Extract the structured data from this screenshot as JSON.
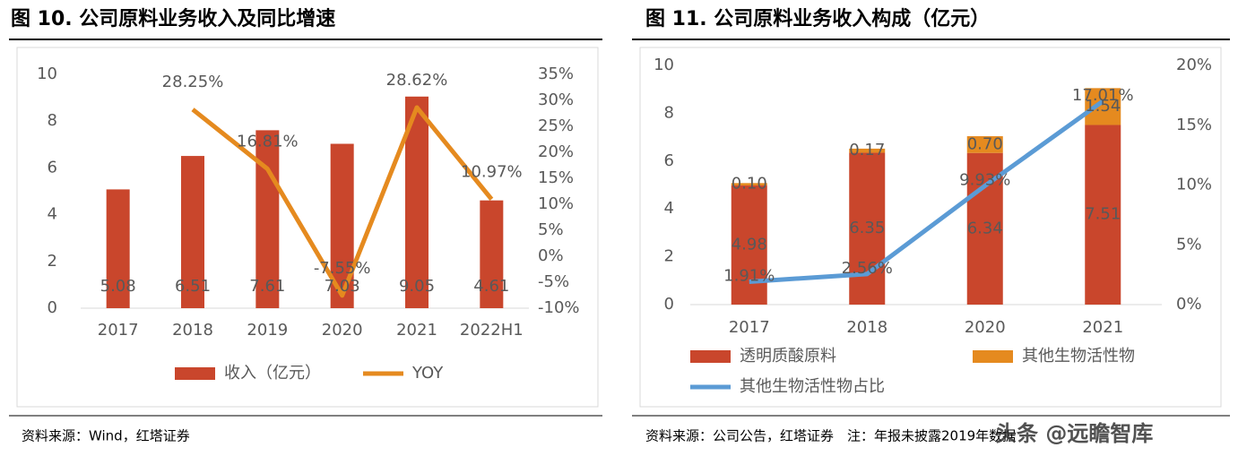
{
  "chart_data": [
    {
      "type": "combo",
      "title": "图 10. 公司原料业务收入及同比增速",
      "source": "资料来源：Wind，红塔证券",
      "categories": [
        "2017",
        "2018",
        "2019",
        "2020",
        "2021",
        "2022H1"
      ],
      "series": [
        {
          "name": "收入（亿元）",
          "kind": "bar",
          "color": "#c9462c",
          "values": [
            5.08,
            6.51,
            7.61,
            7.03,
            9.05,
            4.61
          ]
        },
        {
          "name": "YOY",
          "kind": "line",
          "axis": "y2",
          "color": "#e58a1f",
          "values": [
            null,
            28.25,
            16.81,
            -7.55,
            28.62,
            10.97
          ],
          "value_labels": [
            null,
            "28.25%",
            "16.81%",
            "-7.55%",
            "28.62%",
            "10.97%"
          ]
        }
      ],
      "stacked": false,
      "ylim": [
        0,
        10
      ],
      "yticks": [
        0,
        2,
        4,
        6,
        8,
        10
      ],
      "y2lim": [
        -10,
        35
      ],
      "y2ticks": [
        {
          "value": -10,
          "label": "-10%"
        },
        {
          "value": -5,
          "label": "-5%"
        },
        {
          "value": 0,
          "label": "0%"
        },
        {
          "value": 5,
          "label": "5%"
        },
        {
          "value": 10,
          "label": "10%"
        },
        {
          "value": 15,
          "label": "15%"
        },
        {
          "value": 20,
          "label": "20%"
        },
        {
          "value": 25,
          "label": "25%"
        },
        {
          "value": 30,
          "label": "30%"
        },
        {
          "value": 35,
          "label": "35%"
        }
      ]
    },
    {
      "type": "combo",
      "title": "图 11. 公司原料业务收入构成（亿元）",
      "source": "资料来源：公司公告，红塔证券　注：年报未披露2019年数据",
      "categories": [
        "2017",
        "2018",
        "2020",
        "2021"
      ],
      "series": [
        {
          "name": "透明质酸原料",
          "kind": "bar",
          "color": "#c9462c",
          "values": [
            4.98,
            6.35,
            6.34,
            7.51
          ]
        },
        {
          "name": "其他生物活性物",
          "kind": "bar",
          "color": "#e58a1f",
          "values": [
            0.1,
            0.17,
            0.7,
            1.54
          ],
          "value_labels": [
            "0.10",
            "0.17",
            "0.70",
            "1.54"
          ]
        },
        {
          "name": "其他生物活性物占比",
          "kind": "line",
          "axis": "y2",
          "color": "#5b9bd5",
          "values": [
            1.91,
            2.56,
            9.93,
            17.01
          ],
          "value_labels": [
            "1.91%",
            "2.56%",
            "9.93%",
            "17.01%"
          ]
        }
      ],
      "stacked": true,
      "ylim": [
        0,
        10
      ],
      "yticks": [
        0,
        2,
        4,
        6,
        8,
        10
      ],
      "y2lim": [
        0,
        20
      ],
      "y2ticks": [
        {
          "value": 0,
          "label": "0%"
        },
        {
          "value": 5,
          "label": "5%"
        },
        {
          "value": 10,
          "label": "10%"
        },
        {
          "value": 15,
          "label": "15%"
        },
        {
          "value": 20,
          "label": "20%"
        }
      ]
    }
  ],
  "watermark": "头条 @远瞻智库"
}
